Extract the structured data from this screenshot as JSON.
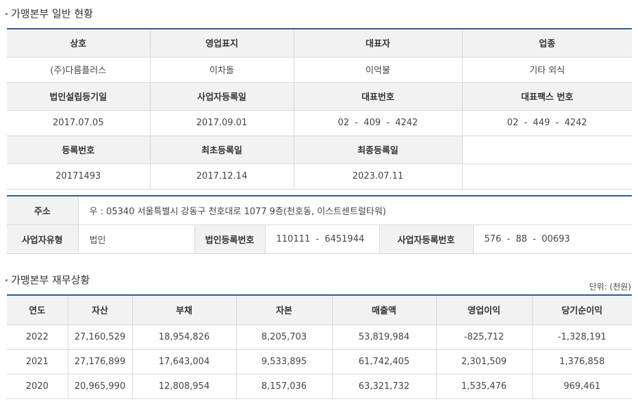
{
  "general": {
    "title": "가맹본부 일반 현황",
    "headers_row1": [
      "상호",
      "영업표지",
      "대표자",
      "업종"
    ],
    "values_row1": [
      "(주)다름플러스",
      "이차돌",
      "이억불",
      "기타 외식"
    ],
    "headers_row2": [
      "법인설립등기일",
      "사업자등록일",
      "대표번호",
      "대표팩스 번호"
    ],
    "values_row2": [
      "2017.07.05",
      "2017.09.01",
      "02  -  409  -  4242",
      "02  -  449  -  4242"
    ],
    "headers_row3": [
      "등록번호",
      "최초등록일",
      "최종등록일",
      ""
    ],
    "values_row3": [
      "20171493",
      "2017.12.14",
      "2023.07.11",
      ""
    ]
  },
  "address": {
    "address_label": "주소",
    "address_value": "우 : 05340 서울특별시 강동구 천호대로 1077 9층(천호동, 이스트센트럴타워)",
    "biz_type_label": "사업자유형",
    "biz_type_value": "법인",
    "corp_reg_label": "법인등록번호",
    "corp_reg_value": "110111  -  6451944",
    "biz_reg_label": "사업자등록번호",
    "biz_reg_value": "576  -  88  -  00693"
  },
  "finance": {
    "title": "가맹본부 재무상황",
    "unit": "단위: (천원)",
    "headers": [
      "연도",
      "자산",
      "부채",
      "자본",
      "매출액",
      "영업이익",
      "당기순이익"
    ],
    "rows": [
      [
        "2022",
        "27,160,529",
        "18,954,826",
        "8,205,703",
        "53,819,984",
        "-825,712",
        "-1,328,191"
      ],
      [
        "2021",
        "27,176,899",
        "17,643,004",
        "9,533,895",
        "61,742,405",
        "2,301,509",
        "1,376,858"
      ],
      [
        "2020",
        "20,965,990",
        "12,808,954",
        "8,157,036",
        "63,321,732",
        "1,535,476",
        "969,461"
      ]
    ]
  }
}
